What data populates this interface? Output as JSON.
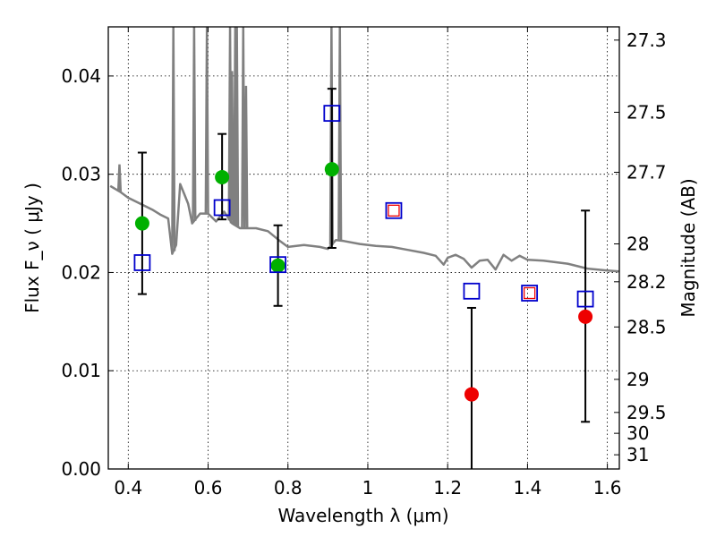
{
  "chart_data": {
    "type": "scatter",
    "xlabel": "Wavelength  λ (μm)",
    "ylabel": "Flux  F_ν  ( μJy )",
    "y2label": "Magnitude (AB)",
    "xlim": [
      0.35,
      1.63
    ],
    "ylim": [
      0.0,
      0.045
    ],
    "xticks": [
      "0.4",
      "0.6",
      "0.8",
      "1",
      "1.2",
      "1.4",
      "1.6"
    ],
    "yticks": [
      "0.00",
      "0.01",
      "0.02",
      "0.03",
      "0.04"
    ],
    "y2ticks": [
      "27.3",
      "27.5",
      "27.7",
      "28",
      "28.2",
      "28.5",
      "29",
      "29.5",
      "30",
      "31"
    ],
    "grid": true,
    "model_spectrum": {
      "color": "#808080",
      "x": [
        0.355,
        0.38,
        0.4,
        0.42,
        0.44,
        0.46,
        0.48,
        0.5,
        0.51,
        0.52,
        0.53,
        0.54,
        0.55,
        0.56,
        0.58,
        0.6,
        0.62,
        0.64,
        0.66,
        0.68,
        0.7,
        0.72,
        0.75,
        0.78,
        0.8,
        0.84,
        0.88,
        0.9,
        0.92,
        0.94,
        0.98,
        1.02,
        1.06,
        1.1,
        1.14,
        1.17,
        1.19,
        1.2,
        1.22,
        1.24,
        1.26,
        1.28,
        1.3,
        1.32,
        1.34,
        1.36,
        1.38,
        1.4,
        1.44,
        1.5,
        1.55,
        1.6,
        1.63
      ],
      "y": [
        0.0288,
        0.0282,
        0.0276,
        0.0272,
        0.0268,
        0.0264,
        0.0259,
        0.0255,
        0.0219,
        0.0228,
        0.029,
        0.028,
        0.027,
        0.025,
        0.026,
        0.026,
        0.0252,
        0.0262,
        0.025,
        0.0245,
        0.0245,
        0.0245,
        0.0242,
        0.0232,
        0.0226,
        0.0228,
        0.0226,
        0.0224,
        0.0233,
        0.0232,
        0.0229,
        0.0227,
        0.0226,
        0.0223,
        0.022,
        0.0217,
        0.0208,
        0.0215,
        0.0218,
        0.0214,
        0.0205,
        0.0212,
        0.0213,
        0.0203,
        0.0218,
        0.0212,
        0.0217,
        0.0213,
        0.0212,
        0.0209,
        0.0204,
        0.0202,
        0.0201
      ],
      "emission_lines": [
        {
          "x": 0.378,
          "y": 0.031
        },
        {
          "x": 0.513,
          "y": 0.045
        },
        {
          "x": 0.565,
          "y": 0.045
        },
        {
          "x": 0.597,
          "y": 0.045
        },
        {
          "x": 0.655,
          "y": 0.045
        },
        {
          "x": 0.66,
          "y": 0.0405
        },
        {
          "x": 0.668,
          "y": 0.045
        },
        {
          "x": 0.672,
          "y": 0.045
        },
        {
          "x": 0.688,
          "y": 0.045
        },
        {
          "x": 0.695,
          "y": 0.039
        },
        {
          "x": 0.909,
          "y": 0.045
        },
        {
          "x": 0.93,
          "y": 0.045
        }
      ]
    },
    "series": [
      {
        "marker": "circle",
        "color": "#00b000",
        "points": [
          {
            "x": 0.435,
            "y": 0.025,
            "err_low": 0.0178,
            "err_high": 0.0322
          },
          {
            "x": 0.635,
            "y": 0.0297,
            "err_low": 0.0254,
            "err_high": 0.0341
          },
          {
            "x": 0.775,
            "y": 0.0207,
            "err_low": 0.0166,
            "err_high": 0.0248
          },
          {
            "x": 0.91,
            "y": 0.0305,
            "err_low": 0.0225,
            "err_high": 0.0387
          }
        ]
      },
      {
        "marker": "circle",
        "color": "#ee0000",
        "points": [
          {
            "x": 1.26,
            "y": 0.0076,
            "err_low": 0.0,
            "err_high": 0.0164
          },
          {
            "x": 1.545,
            "y": 0.0155,
            "err_low": 0.0048,
            "err_high": 0.0263
          }
        ]
      },
      {
        "marker": "square",
        "color": "#0000cc",
        "points": [
          {
            "x": 0.435,
            "y": 0.021
          },
          {
            "x": 0.635,
            "y": 0.0266
          },
          {
            "x": 0.775,
            "y": 0.0208
          },
          {
            "x": 0.91,
            "y": 0.0362
          },
          {
            "x": 1.065,
            "y": 0.0263
          },
          {
            "x": 1.26,
            "y": 0.0181
          },
          {
            "x": 1.405,
            "y": 0.0179
          },
          {
            "x": 1.545,
            "y": 0.0173
          }
        ]
      },
      {
        "marker": "square-small",
        "color": "#ee0000",
        "points": [
          {
            "x": 1.065,
            "y": 0.0263
          },
          {
            "x": 1.405,
            "y": 0.0179
          }
        ]
      }
    ]
  },
  "colors": {
    "axis": "#000000",
    "grid": "#000000",
    "errorbar": "#000000"
  }
}
